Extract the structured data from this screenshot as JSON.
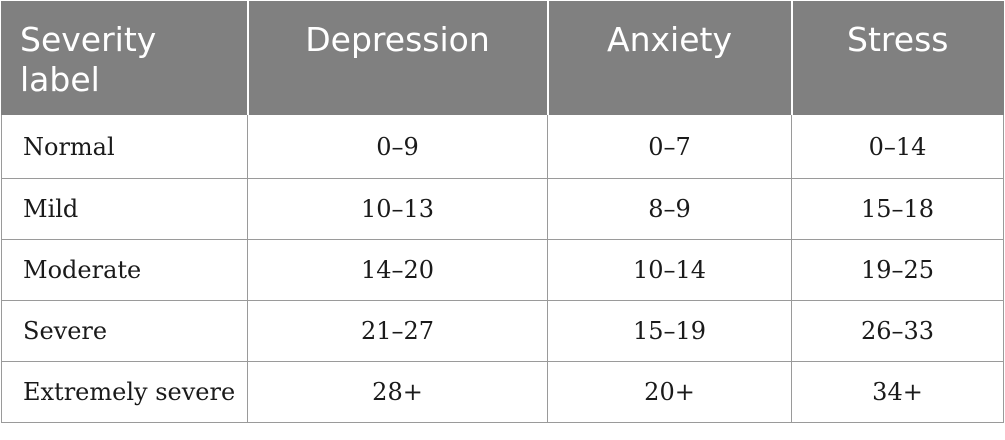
{
  "table": {
    "headers": [
      "Severity label",
      "Depression",
      "Anxiety",
      "Stress"
    ],
    "rows": [
      {
        "label": "Normal",
        "depression": "0–9",
        "anxiety": "0–7",
        "stress": "0–14"
      },
      {
        "label": "Mild",
        "depression": "10–13",
        "anxiety": "8–9",
        "stress": "15–18"
      },
      {
        "label": "Moderate",
        "depression": "14–20",
        "anxiety": "10–14",
        "stress": "19–25"
      },
      {
        "label": "Severe",
        "depression": "21–27",
        "anxiety": "15–19",
        "stress": "26–33"
      },
      {
        "label": "Extremely severe",
        "depression": "28+",
        "anxiety": "20+",
        "stress": "34+"
      }
    ]
  },
  "colors": {
    "header_bg": "#808080",
    "header_text": "#ffffff",
    "body_text": "#1a1a1a",
    "border": "#9a9a9a"
  }
}
